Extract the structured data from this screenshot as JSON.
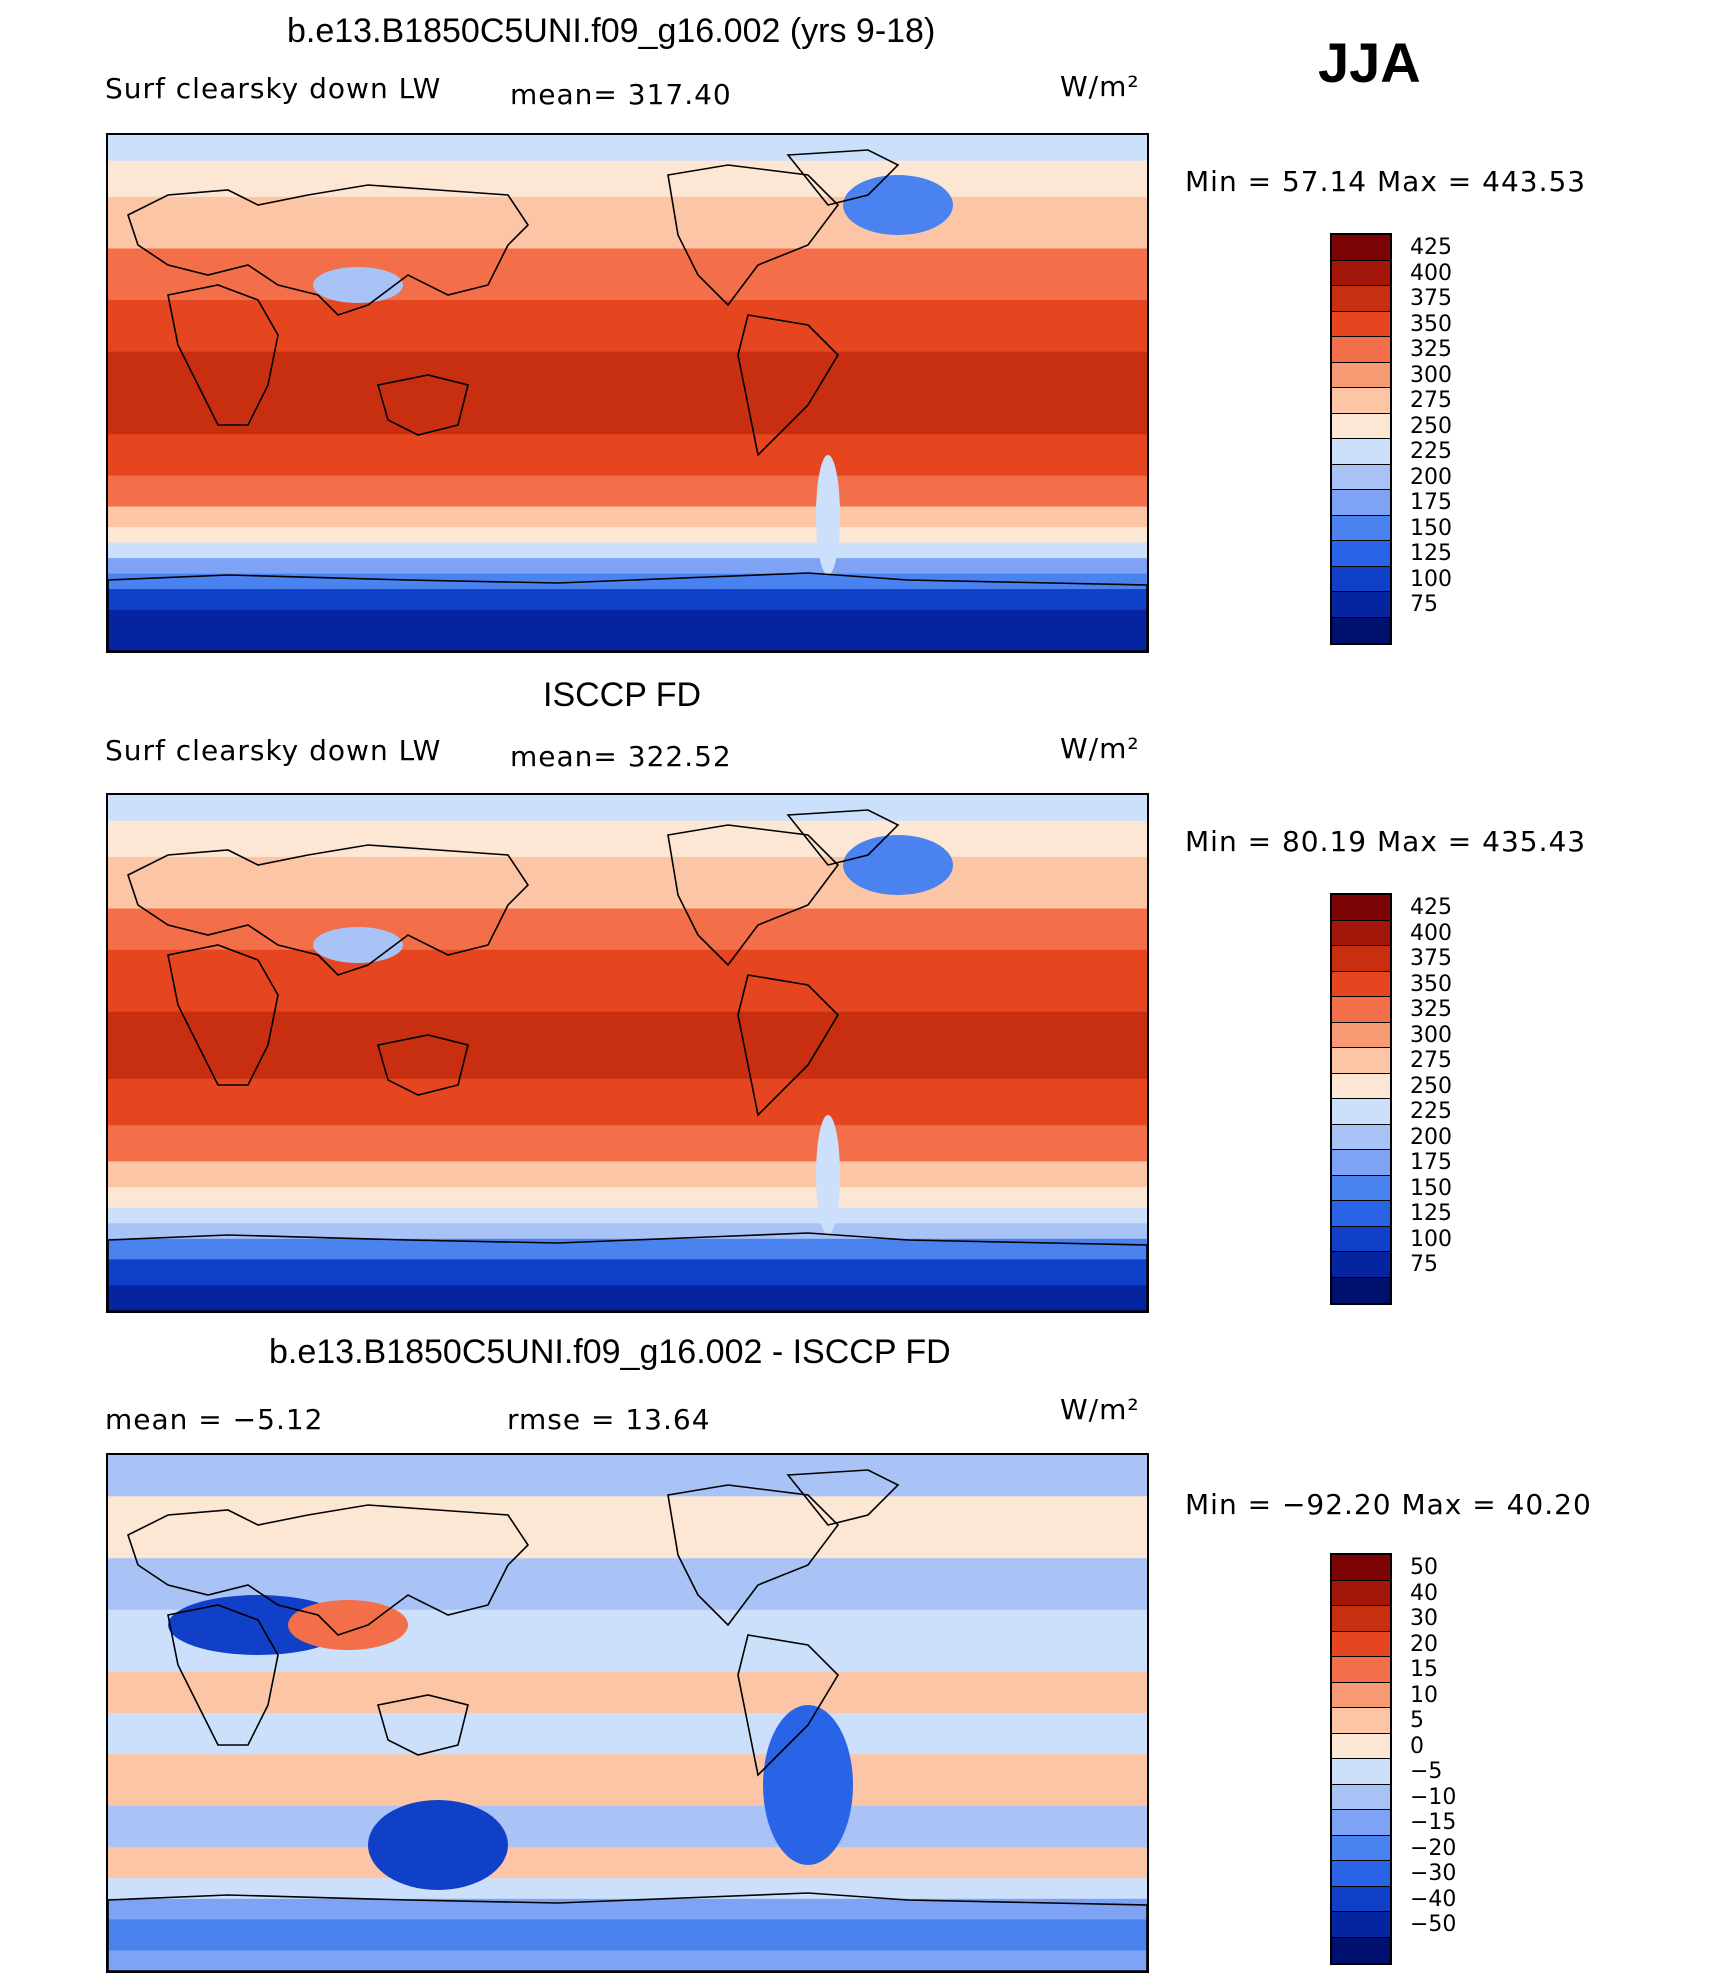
{
  "season": "JJA",
  "palettes": {
    "abs": [
      "#00106e",
      "#0525a0",
      "#1040c8",
      "#2a64e6",
      "#4a82f0",
      "#7ea3f4",
      "#a9c3f7",
      "#cde0fb",
      "#fce6d4",
      "#fbc5a6",
      "#f79a74",
      "#f26f49",
      "#e5451f",
      "#c82e10",
      "#a3160a",
      "#7c0404"
    ],
    "diff": [
      "#00106e",
      "#0525a0",
      "#1040c8",
      "#2a64e6",
      "#4a82f0",
      "#7ea3f4",
      "#a9c3f7",
      "#cde0fb",
      "#fce6d4",
      "#fbc5a6",
      "#f79a74",
      "#f26f49",
      "#e5451f",
      "#c82e10",
      "#a3160a",
      "#7c0404"
    ]
  },
  "panels": [
    {
      "title": "b.e13.B1850C5UNI.f09_g16.002 (yrs 9-18)",
      "left_label": "Surf clearsky down LW",
      "mid_label": "mean= 317.40",
      "units": "W/m²",
      "minmax": "Min =   57.14 Max = 443.53",
      "ticks": [
        "425",
        "400",
        "375",
        "350",
        "325",
        "300",
        "275",
        "250",
        "225",
        "200",
        "175",
        "150",
        "125",
        "100",
        "75"
      ],
      "variant": "model"
    },
    {
      "title": "ISCCP FD",
      "left_label": "Surf clearsky down LW",
      "mid_label": "mean= 322.52",
      "units": "W/m²",
      "minmax": "Min =   80.19 Max = 435.43",
      "ticks": [
        "425",
        "400",
        "375",
        "350",
        "325",
        "300",
        "275",
        "250",
        "225",
        "200",
        "175",
        "150",
        "125",
        "100",
        "75"
      ],
      "variant": "obs"
    },
    {
      "title": "b.e13.B1850C5UNI.f09_g16.002 - ISCCP FD",
      "left_label": "mean =   −5.12",
      "mid_label": "rmse =   13.64",
      "units": "W/m²",
      "minmax": "Min = −92.20 Max =   40.20",
      "ticks": [
        "50",
        "40",
        "30",
        "20",
        "15",
        "10",
        "5",
        "0",
        "−5",
        "−10",
        "−15",
        "−20",
        "−30",
        "−40",
        "−50"
      ],
      "variant": "diff"
    }
  ]
}
